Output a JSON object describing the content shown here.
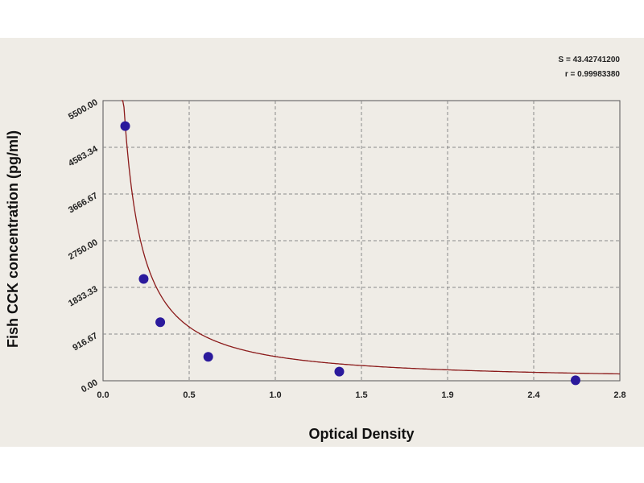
{
  "chart_data": {
    "type": "scatter",
    "xlabel": "Optical Density",
    "ylabel": "Fish  CCK  concentration (pg/ml)",
    "xlim": [
      0,
      2.8
    ],
    "ylim": [
      0,
      5500
    ],
    "x_ticks": [
      "0.0",
      "0.5",
      "1.0",
      "1.5",
      "1.9",
      "2.4",
      "2.8"
    ],
    "x_tick_values": [
      0,
      0.4667,
      0.9333,
      1.4,
      1.8667,
      2.3333,
      2.8
    ],
    "y_ticks": [
      "0.00",
      "916.67",
      "1833.33",
      "2750.00",
      "3666.67",
      "4583.34",
      "5500.00"
    ],
    "y_tick_values": [
      0,
      916.67,
      1833.33,
      2750,
      3666.67,
      4583.34,
      5500
    ],
    "grid": true,
    "series": [
      {
        "points": [
          {
            "x": 0.12,
            "y": 5000
          },
          {
            "x": 0.22,
            "y": 2000
          },
          {
            "x": 0.31,
            "y": 1150
          },
          {
            "x": 0.57,
            "y": 470
          },
          {
            "x": 1.28,
            "y": 180
          },
          {
            "x": 2.56,
            "y": 10
          }
        ]
      }
    ],
    "fit_curve": {
      "type": "power",
      "a": 440,
      "b": -1.15
    },
    "annotations": [
      "S = 43.42741200",
      "r = 0.99983380"
    ],
    "colors": {
      "points": "#2b1a9c",
      "curve": "#8b1a1a",
      "grid": "#8a8a8a",
      "background": "#efece6"
    }
  }
}
